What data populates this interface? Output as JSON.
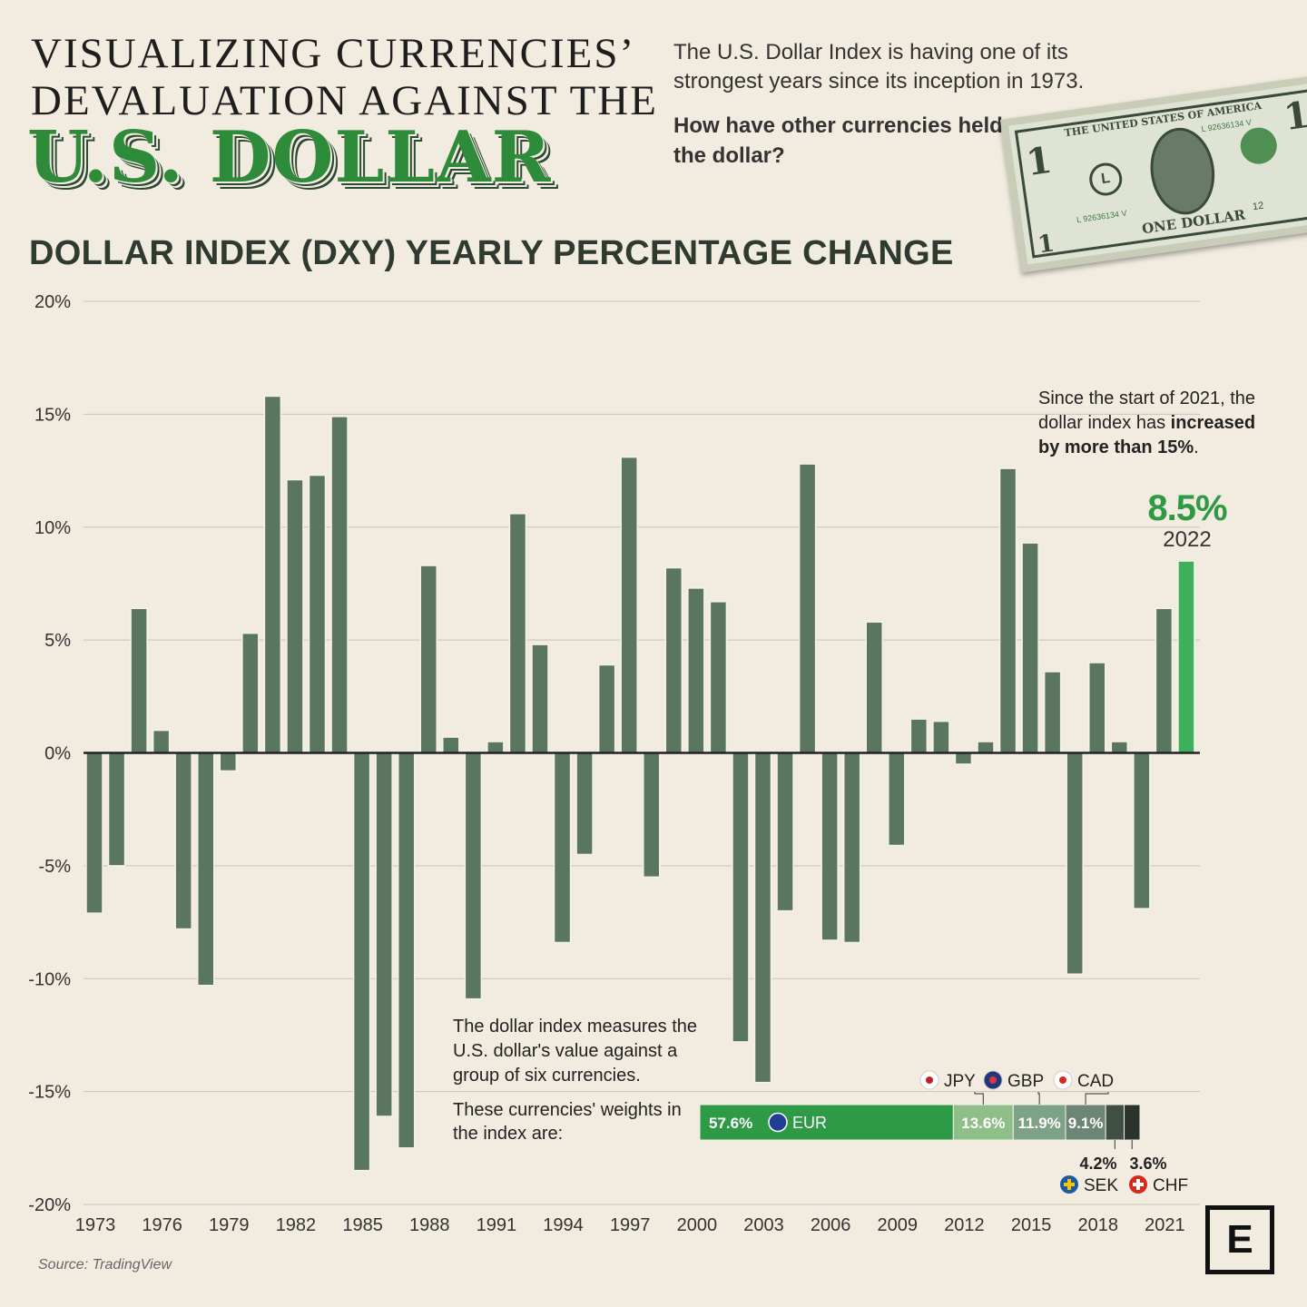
{
  "header": {
    "title_line1": "VISUALIZING CURRENCIES’",
    "title_line2": "DEVALUATION AGAINST THE",
    "title_line3": "U.S. DOLLAR",
    "intro": "The U.S. Dollar Index is having one of its strongest years since its inception in 1973.",
    "question": "How have other currencies held up against the dollar?"
  },
  "bill": {
    "top_text": "THE UNITED STATES OF AMERICA",
    "serial": "L 92636134 V",
    "bottom_text": "ONE DOLLAR",
    "corner": "1",
    "seal_letter": "L",
    "small_number": "12"
  },
  "annotations": {
    "note_2021_plain": "Since the start of 2021, the dollar index has",
    "note_2021_bold": "increased by more than 15%",
    "note_2021_end": ".",
    "highlight_value": "8.5%",
    "highlight_year": "2022",
    "index_note": "The dollar index measures the U.S. dollar's value against a group of six currencies.",
    "weights_note": "These currencies' weights in the index are:"
  },
  "source": "Source: TradingView",
  "logo": "E",
  "colors": {
    "background": "#f1ecdf",
    "bar": "#5a7660",
    "bar_highlight": "#3cb05a",
    "eur": "#2e9a45",
    "jpy": "#8fbf88",
    "gbp": "#7ea287",
    "cad": "#6d8575",
    "sek": "#3f4f44",
    "chf": "#2a332c"
  },
  "chart_data": [
    {
      "type": "bar",
      "title": "DOLLAR INDEX (DXY) YEARLY PERCENTAGE CHANGE",
      "ylim": [
        -20,
        20
      ],
      "y_ticks": [
        "20%",
        "15%",
        "10%",
        "5%",
        "0%",
        "-5%",
        "-10%",
        "-15%",
        "-20%"
      ],
      "x_tick_labels": [
        "1973",
        "1976",
        "1979",
        "1982",
        "1985",
        "1988",
        "1991",
        "1994",
        "1997",
        "2000",
        "2003",
        "2006",
        "2009",
        "2012",
        "2015",
        "2018",
        "2021"
      ],
      "x": [
        1973,
        1974,
        1975,
        1976,
        1977,
        1978,
        1979,
        1980,
        1981,
        1982,
        1983,
        1984,
        1985,
        1986,
        1987,
        1988,
        1989,
        1990,
        1991,
        1992,
        1993,
        1994,
        1995,
        1996,
        1997,
        1998,
        1999,
        2000,
        2001,
        2002,
        2003,
        2004,
        2005,
        2006,
        2007,
        2008,
        2009,
        2010,
        2011,
        2012,
        2013,
        2014,
        2015,
        2016,
        2017,
        2018,
        2019,
        2020,
        2021,
        2022
      ],
      "values": [
        -7.1,
        -5.0,
        6.4,
        1.0,
        -7.8,
        -10.3,
        -0.8,
        5.3,
        15.8,
        12.1,
        12.3,
        14.9,
        -18.5,
        -16.1,
        -17.5,
        8.3,
        0.7,
        -10.9,
        0.5,
        10.6,
        4.8,
        -8.4,
        -4.5,
        3.9,
        13.1,
        -5.5,
        8.2,
        7.3,
        6.7,
        -12.8,
        -14.6,
        -7.0,
        12.8,
        -8.3,
        -8.4,
        5.8,
        -4.1,
        1.5,
        1.4,
        -0.5,
        0.5,
        12.6,
        9.3,
        3.6,
        -9.8,
        4.0,
        0.5,
        -6.9,
        6.4,
        8.5
      ]
    },
    {
      "type": "bar",
      "orientation": "horizontal-stacked",
      "series": [
        {
          "name": "EUR",
          "value": 57.6,
          "label": "57.6%",
          "flag": "eu-flag-icon"
        },
        {
          "name": "JPY",
          "value": 13.6,
          "label": "13.6%",
          "flag": "japan-flag-icon"
        },
        {
          "name": "GBP",
          "value": 11.9,
          "label": "11.9%",
          "flag": "uk-flag-icon"
        },
        {
          "name": "CAD",
          "value": 9.1,
          "label": "9.1%",
          "flag": "canada-flag-icon"
        },
        {
          "name": "SEK",
          "value": 4.2,
          "label": "4.2%",
          "flag": "sweden-flag-icon"
        },
        {
          "name": "CHF",
          "value": 3.6,
          "label": "3.6%",
          "flag": "swiss-flag-icon"
        }
      ]
    }
  ]
}
